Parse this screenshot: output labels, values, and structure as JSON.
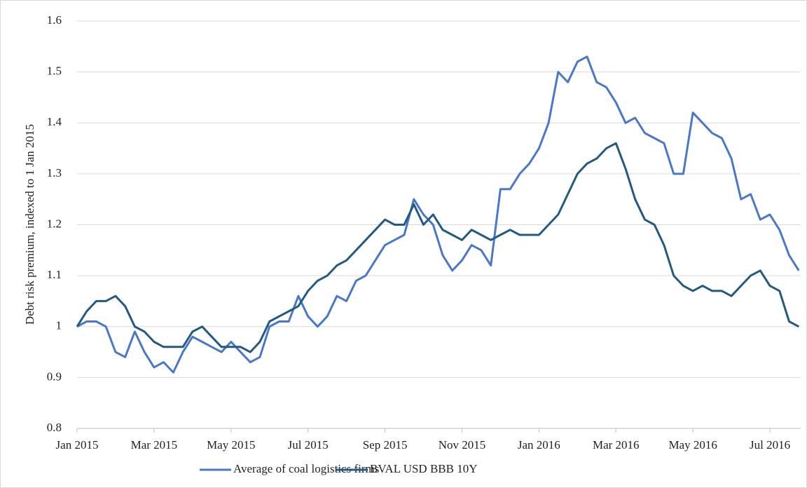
{
  "chart_data": {
    "type": "line",
    "ylabel": "Debt risk premium, indexed to 1 Jan 2015",
    "categories": [
      "Jan 2015",
      null,
      null,
      null,
      null,
      null,
      null,
      null,
      "Mar 2015",
      null,
      null,
      null,
      null,
      null,
      null,
      null,
      "May 2015",
      null,
      null,
      null,
      null,
      null,
      null,
      null,
      "Jul 2015",
      null,
      null,
      null,
      null,
      null,
      null,
      null,
      "Sep 2015",
      null,
      null,
      null,
      null,
      null,
      null,
      null,
      "Nov 2015",
      null,
      null,
      null,
      null,
      null,
      null,
      null,
      "Jan 2016",
      null,
      null,
      null,
      null,
      null,
      null,
      null,
      "Mar 2016",
      null,
      null,
      null,
      null,
      null,
      null,
      null,
      "May 2016",
      null,
      null,
      null,
      null,
      null,
      null,
      null,
      "Jul 2016",
      null,
      null,
      null
    ],
    "series": [
      {
        "name": "Average of coal logistics firms",
        "color": "#4a78c8",
        "values": [
          1.0,
          1.01,
          1.01,
          1.0,
          0.95,
          0.94,
          0.99,
          0.95,
          0.92,
          0.93,
          0.91,
          0.95,
          0.98,
          0.97,
          0.96,
          0.95,
          0.97,
          0.95,
          0.93,
          0.94,
          1.0,
          1.01,
          1.01,
          1.06,
          1.02,
          1.0,
          1.02,
          1.06,
          1.05,
          1.09,
          1.1,
          1.13,
          1.16,
          1.17,
          1.18,
          1.25,
          1.22,
          1.2,
          1.14,
          1.11,
          1.13,
          1.16,
          1.15,
          1.12,
          1.27,
          1.27,
          1.3,
          1.32,
          1.35,
          1.4,
          1.5,
          1.48,
          1.52,
          1.53,
          1.48,
          1.47,
          1.44,
          1.4,
          1.41,
          1.38,
          1.37,
          1.36,
          1.3,
          1.3,
          1.42,
          1.4,
          1.38,
          1.37,
          1.33,
          1.25,
          1.26,
          1.21,
          1.22,
          1.19,
          1.14,
          1.11
        ]
      },
      {
        "name": "BVAL USD BBB 10Y",
        "color": "#245a82",
        "values": [
          1.0,
          1.03,
          1.05,
          1.05,
          1.06,
          1.04,
          1.0,
          0.99,
          0.97,
          0.96,
          0.96,
          0.96,
          0.99,
          1.0,
          0.98,
          0.96,
          0.96,
          0.96,
          0.95,
          0.97,
          1.01,
          1.02,
          1.03,
          1.04,
          1.07,
          1.09,
          1.1,
          1.12,
          1.13,
          1.15,
          1.17,
          1.19,
          1.21,
          1.2,
          1.2,
          1.24,
          1.2,
          1.22,
          1.19,
          1.18,
          1.17,
          1.19,
          1.18,
          1.17,
          1.18,
          1.19,
          1.18,
          1.18,
          1.18,
          1.2,
          1.22,
          1.26,
          1.3,
          1.32,
          1.33,
          1.35,
          1.36,
          1.31,
          1.25,
          1.21,
          1.2,
          1.16,
          1.1,
          1.08,
          1.07,
          1.08,
          1.07,
          1.07,
          1.06,
          1.08,
          1.1,
          1.11,
          1.08,
          1.07,
          1.01,
          1.0
        ]
      }
    ],
    "ylim": [
      0.8,
      1.6
    ],
    "yticks": [
      0.8,
      0.9,
      1,
      1.1,
      1.2,
      1.3,
      1.4,
      1.5,
      1.6
    ],
    "grid": true,
    "legend": "bottom"
  }
}
